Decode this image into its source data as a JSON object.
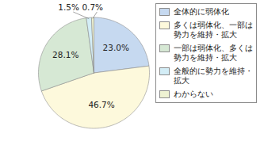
{
  "chart_data": {
    "type": "pie",
    "categories": [
      "全体的に弱体化",
      "多くは弱体化、一部は勢力を維持・拡大",
      "一部は弱体化、多くは勢力を維持・拡大",
      "全般的に勢力を維持・拡大",
      "わからない"
    ],
    "values": [
      23.0,
      46.7,
      28.1,
      1.5,
      0.7
    ],
    "value_labels": [
      "23.0%",
      "46.7%",
      "28.1%",
      "1.5%",
      "0.7%"
    ],
    "colors": [
      "#c6d9f0",
      "#fdf9dc",
      "#d6e8d4",
      "#d3edf6",
      "#eef2d2"
    ],
    "data_labels": true,
    "legend": "right"
  }
}
